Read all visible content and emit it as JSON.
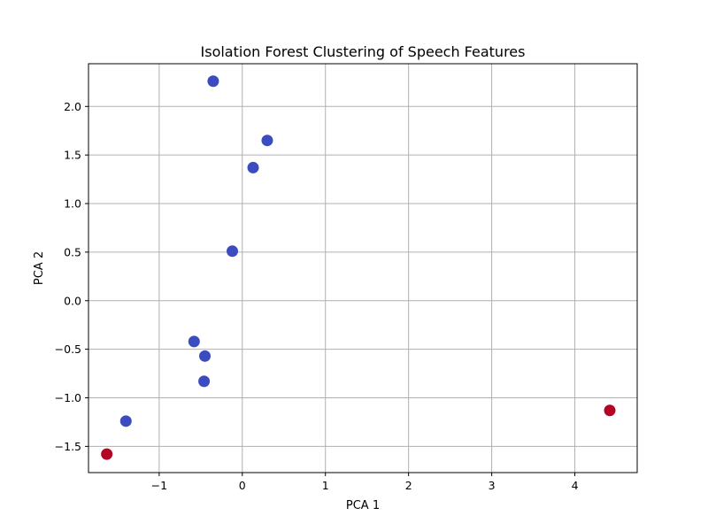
{
  "chart_data": {
    "type": "scatter",
    "title": "Isolation Forest Clustering of Speech Features",
    "xlabel": "PCA 1",
    "ylabel": "PCA 2",
    "xlim": [
      -1.85,
      4.75
    ],
    "ylim": [
      -1.77,
      2.44
    ],
    "xticks": [
      -1,
      0,
      1,
      2,
      3,
      4
    ],
    "xtick_labels": [
      "−1",
      "0",
      "1",
      "2",
      "3",
      "4"
    ],
    "yticks": [
      -1.5,
      -1.0,
      -0.5,
      0.0,
      0.5,
      1.0,
      1.5,
      2.0
    ],
    "ytick_labels": [
      "−1.5",
      "−1.0",
      "−0.5",
      "0.0",
      "0.5",
      "1.0",
      "1.5",
      "2.0"
    ],
    "grid": true,
    "colors": {
      "inlier": "#3b4cc0",
      "outlier": "#b40426"
    },
    "points": [
      {
        "x": -0.35,
        "y": 2.26,
        "class": "inlier"
      },
      {
        "x": 0.3,
        "y": 1.65,
        "class": "inlier"
      },
      {
        "x": 0.13,
        "y": 1.37,
        "class": "inlier"
      },
      {
        "x": -0.12,
        "y": 0.51,
        "class": "inlier"
      },
      {
        "x": -0.58,
        "y": -0.42,
        "class": "inlier"
      },
      {
        "x": -0.45,
        "y": -0.57,
        "class": "inlier"
      },
      {
        "x": -0.46,
        "y": -0.83,
        "class": "inlier"
      },
      {
        "x": -1.4,
        "y": -1.24,
        "class": "inlier"
      },
      {
        "x": -1.63,
        "y": -1.58,
        "class": "outlier"
      },
      {
        "x": 4.42,
        "y": -1.13,
        "class": "outlier"
      }
    ]
  }
}
